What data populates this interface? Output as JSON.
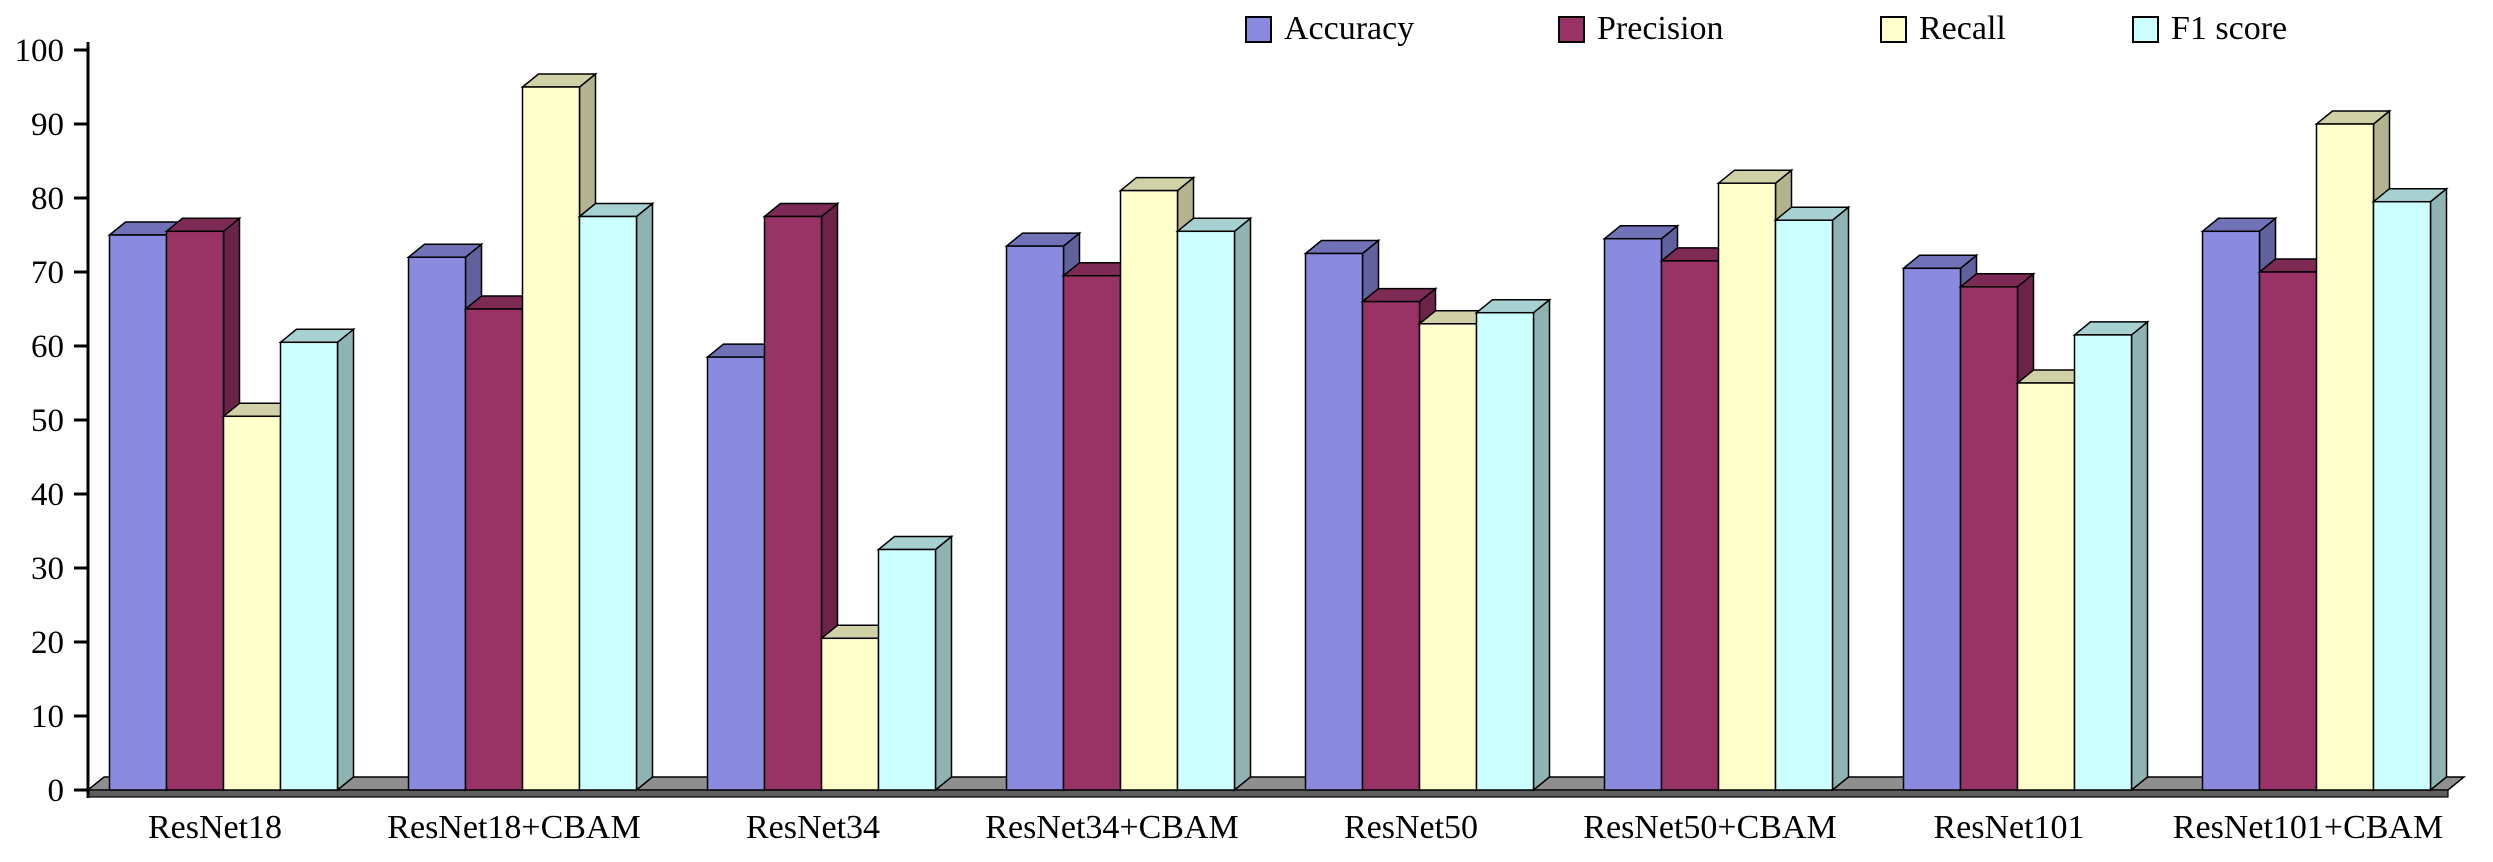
{
  "chart_data": {
    "type": "bar",
    "style": "3d-column",
    "title": "",
    "categories": [
      "ResNet18",
      "ResNet18+CBAM",
      "ResNet34",
      "ResNet34+CBAM",
      "ResNet50",
      "ResNet50+CBAM",
      "ResNet101",
      "ResNet101+CBAM"
    ],
    "series": [
      {
        "name": "Accuracy",
        "color": "#8A8AE0",
        "values": [
          75,
          72,
          58.5,
          73.5,
          72.5,
          74.5,
          70.5,
          75.5
        ]
      },
      {
        "name": "Precision",
        "color": "#993366",
        "values": [
          75.5,
          65,
          77.5,
          69.5,
          66,
          71.5,
          68,
          70
        ]
      },
      {
        "name": "Recall",
        "color": "#FFFFCC",
        "values": [
          50.5,
          95,
          20.5,
          81,
          63,
          82,
          55,
          90
        ]
      },
      {
        "name": "F1 score",
        "color": "#CCFFFF",
        "values": [
          60.5,
          77.5,
          32.5,
          75.5,
          64.5,
          77,
          61.5,
          79.5
        ]
      }
    ],
    "ylim": [
      0,
      100
    ],
    "ytick_step": 10,
    "grid": false,
    "legend_position": "top"
  },
  "axis": {
    "yticks": [
      "0",
      "10",
      "20",
      "30",
      "40",
      "50",
      "60",
      "70",
      "80",
      "90",
      "100"
    ]
  },
  "floor": {
    "top_color": "#8f8f8f",
    "front_color": "#5f5f5f"
  }
}
